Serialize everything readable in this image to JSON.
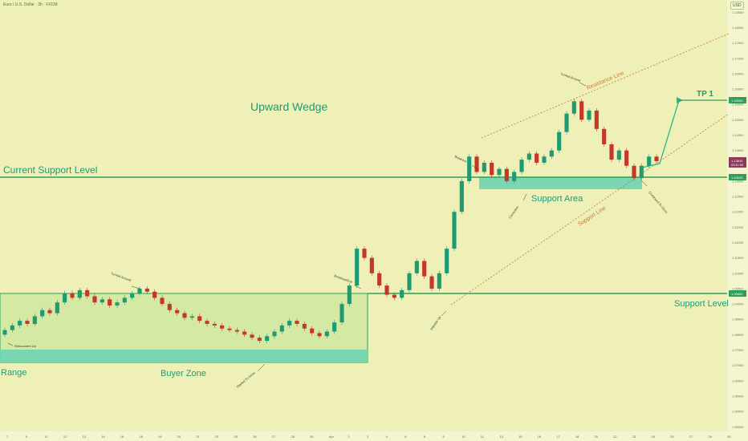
{
  "header": {
    "pair_title": "Euro / U.S. Dollar · 2h · FXCM",
    "currency": "USD"
  },
  "colors": {
    "background": "#eef0b8",
    "zone_fill": "#cfe8a0",
    "teal_zone": "#6fd3b4",
    "green_line": "#2e9e5b",
    "label_green": "#1f9b74",
    "candle_up": "#1f9b74",
    "candle_down": "#c0392b",
    "dotted_line": "#c47a3a",
    "current_price_tag": "#8b3a5a",
    "level_tag": "#2e9e5b"
  },
  "chart_data": {
    "type": "candlestick",
    "symbol": "Euro / U.S. Dollar",
    "timeframe": "2h",
    "ylim": [
      1.0485,
      1.189
    ],
    "price_ticks": [
      1.185,
      1.18,
      1.175,
      1.17,
      1.165,
      1.16,
      1.155,
      1.15,
      1.145,
      1.14,
      1.135,
      1.13,
      1.125,
      1.12,
      1.115,
      1.11,
      1.105,
      1.1,
      1.095,
      1.09,
      1.085,
      1.08,
      1.075,
      1.07,
      1.065,
      1.06,
      1.055,
      1.05
    ],
    "date_ticks": [
      "7",
      "9",
      "11",
      "12",
      "13",
      "14",
      "16",
      "18",
      "19",
      "20",
      "21",
      "23",
      "25",
      "26",
      "27",
      "28",
      "30",
      "Apr",
      "2",
      "3",
      "4",
      "6",
      "8",
      "9",
      "10",
      "11",
      "13",
      "15",
      "16",
      "17",
      "18",
      "20",
      "22",
      "23",
      "24",
      "25",
      "27",
      "29",
      "30"
    ],
    "candles": [
      [
        1.08,
        1.0815
      ],
      [
        1.0815,
        1.083
      ],
      [
        1.083,
        1.0845
      ],
      [
        1.0845,
        1.0835
      ],
      [
        1.0835,
        1.086
      ],
      [
        1.086,
        1.088
      ],
      [
        1.088,
        1.087
      ],
      [
        1.087,
        1.0905
      ],
      [
        1.0905,
        1.0935
      ],
      [
        1.0935,
        1.092
      ],
      [
        1.092,
        1.0945
      ],
      [
        1.0945,
        1.0925
      ],
      [
        1.0925,
        1.0905
      ],
      [
        1.0905,
        1.0915
      ],
      [
        1.0915,
        1.0895
      ],
      [
        1.0895,
        1.0905
      ],
      [
        1.0905,
        1.092
      ],
      [
        1.092,
        1.0935
      ],
      [
        1.0935,
        1.095
      ],
      [
        1.095,
        1.094
      ],
      [
        1.094,
        1.092
      ],
      [
        1.092,
        1.09
      ],
      [
        1.09,
        1.088
      ],
      [
        1.088,
        1.087
      ],
      [
        1.087,
        1.0855
      ],
      [
        1.0855,
        1.086
      ],
      [
        1.086,
        1.0845
      ],
      [
        1.0845,
        1.0835
      ],
      [
        1.0835,
        1.083
      ],
      [
        1.083,
        1.082
      ],
      [
        1.082,
        1.0815
      ],
      [
        1.0815,
        1.081
      ],
      [
        1.081,
        1.08
      ],
      [
        1.08,
        1.079
      ],
      [
        1.079,
        1.078
      ],
      [
        1.078,
        1.0795
      ],
      [
        1.0795,
        1.081
      ],
      [
        1.081,
        1.083
      ],
      [
        1.083,
        1.0845
      ],
      [
        1.0845,
        1.0835
      ],
      [
        1.0835,
        1.082
      ],
      [
        1.082,
        1.0805
      ],
      [
        1.0805,
        1.0795
      ],
      [
        1.0795,
        1.081
      ],
      [
        1.081,
        1.084
      ],
      [
        1.084,
        1.09
      ],
      [
        1.09,
        1.096
      ],
      [
        1.096,
        1.108
      ],
      [
        1.108,
        1.105
      ],
      [
        1.105,
        1.1
      ],
      [
        1.1,
        1.096
      ],
      [
        1.096,
        1.093
      ],
      [
        1.093,
        1.092
      ],
      [
        1.092,
        1.0945
      ],
      [
        1.0945,
        1.1
      ],
      [
        1.1,
        1.104
      ],
      [
        1.104,
        1.099
      ],
      [
        1.099,
        1.095
      ],
      [
        1.095,
        1.1
      ],
      [
        1.1,
        1.108
      ],
      [
        1.108,
        1.12
      ],
      [
        1.12,
        1.13
      ],
      [
        1.13,
        1.138
      ],
      [
        1.138,
        1.133
      ],
      [
        1.133,
        1.136
      ],
      [
        1.136,
        1.132
      ],
      [
        1.132,
        1.134
      ],
      [
        1.134,
        1.13
      ],
      [
        1.13,
        1.133
      ],
      [
        1.133,
        1.137
      ],
      [
        1.137,
        1.139
      ],
      [
        1.139,
        1.136
      ],
      [
        1.136,
        1.138
      ],
      [
        1.138,
        1.14
      ],
      [
        1.14,
        1.146
      ],
      [
        1.146,
        1.152
      ],
      [
        1.152,
        1.156
      ],
      [
        1.156,
        1.15
      ],
      [
        1.15,
        1.153
      ],
      [
        1.153,
        1.147
      ],
      [
        1.147,
        1.142
      ],
      [
        1.142,
        1.137
      ],
      [
        1.137,
        1.14
      ],
      [
        1.14,
        1.135
      ],
      [
        1.135,
        1.131
      ],
      [
        1.131,
        1.135
      ],
      [
        1.135,
        1.138
      ],
      [
        1.138,
        1.1365
      ]
    ],
    "current_price_tag": "1.13644",
    "current_price_sub": "03:11:52",
    "current_price": 1.13644,
    "level_tag_upper": "1.13100",
    "level_upper": 1.131,
    "level_tag_lower": "1.09600",
    "level_lower": 1.096,
    "tp_tag": "1.15500",
    "tp_level": 1.155
  },
  "labels": {
    "upward_wedge": "Upward Wedge",
    "current_support_level": "Current Support Level",
    "support_level": "Support Level",
    "range": "Range",
    "buyer_zone": "Buyer Zone",
    "support_area": "Support Area",
    "support_line": "Support Line",
    "resistance_line": "Resistance Line",
    "tp1": "TP 1"
  },
  "annotations": {
    "rebounded_up": "Rebounded Up",
    "turned_around_left": "Turned Around",
    "started_to_grow": "Started To Grow",
    "breakout_exit": "Breakout/Exit",
    "impulse_up": "Impulse Up",
    "breakout": "Breakout",
    "correction": "Correction",
    "turned_around_top": "Turned Around",
    "continue_to_grow": "Continued To Grow"
  }
}
